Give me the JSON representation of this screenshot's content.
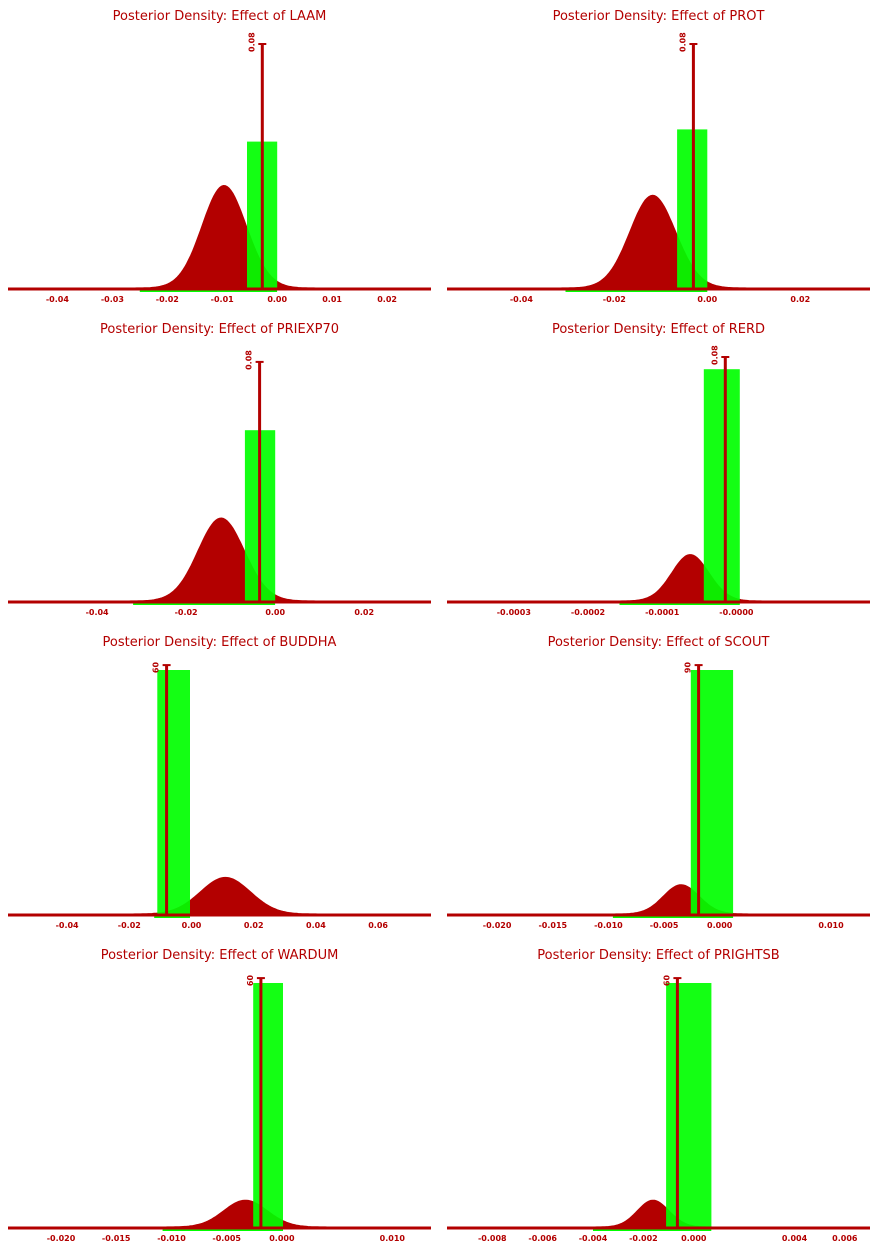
{
  "colors": {
    "density": "#b30000",
    "bar": "#00ff00",
    "axis": "#b30000",
    "text": "#b30000"
  },
  "chart_data": [
    {
      "type": "area",
      "title": "Posterior Density: Effect of LAAM",
      "xlim": [
        -0.049,
        0.028
      ],
      "ticks": [
        "-0.04",
        "-0.03",
        "-0.02",
        "-0.01",
        "0.00",
        "0.01",
        "0.02"
      ],
      "density": {
        "mean": -0.0115,
        "sd": 0.0045,
        "skew": 0.6,
        "peak_frac": 0.42
      },
      "bar": {
        "x0": -0.0055,
        "x1": 0.0,
        "height_frac": 0.6
      },
      "marker": {
        "label": "0.08",
        "x": -0.0027,
        "height_frac": 1.0
      }
    },
    {
      "type": "area",
      "title": "Posterior Density: Effect of PROT",
      "xlim": [
        -0.056,
        0.035
      ],
      "ticks": [
        "-0.04",
        "-0.02",
        "0.00",
        "0.02"
      ],
      "density": {
        "mean": -0.014,
        "sd": 0.0055,
        "skew": 0.6,
        "peak_frac": 0.38
      },
      "bar": {
        "x0": -0.0065,
        "x1": 0.0,
        "height_frac": 0.65
      },
      "marker": {
        "label": "0.08",
        "x": -0.003,
        "height_frac": 1.0
      }
    },
    {
      "type": "area",
      "title": "Posterior Density: Effect of PRIEXP70",
      "xlim": [
        -0.06,
        0.035
      ],
      "ticks": [
        "-0.04",
        "-0.02",
        "0.00",
        "0.02"
      ],
      "density": {
        "mean": -0.0145,
        "sd": 0.0058,
        "skew": 0.6,
        "peak_frac": 0.34
      },
      "bar": {
        "x0": -0.0068,
        "x1": 0.0,
        "height_frac": 0.7
      },
      "marker": {
        "label": "0.08",
        "x": -0.0035,
        "height_frac": 0.98
      }
    },
    {
      "type": "area",
      "title": "Posterior Density: Effect of RERD",
      "xlim": [
        -0.00039,
        0.00018
      ],
      "ticks": [
        "-0.0003",
        "-0.0002",
        "-0.0001",
        "-0.0000"
      ],
      "density": {
        "mean": -7.36e-05,
        "sd": 2.8e-05,
        "skew": 0.6,
        "peak_frac": 0.19
      },
      "bar": {
        "x0": -4.4e-05,
        "x1": 4.5e-06,
        "height_frac": 0.95
      },
      "marker": {
        "label": "0.08",
        "x": -1.5e-05,
        "height_frac": 1.0
      }
    },
    {
      "type": "area",
      "title": "Posterior Density: Effect of BUDDHA",
      "xlim": [
        -0.059,
        0.077
      ],
      "ticks": [
        "-0.04",
        "-0.02",
        "0.00",
        "0.02",
        "0.04",
        "0.06"
      ],
      "density": {
        "mean": 0.0135,
        "sd": 0.0085,
        "skew": -0.4,
        "peak_frac": 0.15
      },
      "bar": {
        "x0": -0.011,
        "x1": -0.0005,
        "height_frac": 1.0
      },
      "marker": {
        "label": "60",
        "x": -0.008,
        "height_frac": 1.02
      }
    },
    {
      "type": "area",
      "title": "Posterior Density: Effect of SCOUT",
      "xlim": [
        -0.0245,
        0.0135
      ],
      "ticks": [
        "-0.020",
        "-0.015",
        "-0.010",
        "-0.005",
        "0.000",
        "0.010"
      ],
      "density": {
        "mean": -0.0042,
        "sd": 0.0018,
        "skew": 0.6,
        "peak_frac": 0.12
      },
      "bar": {
        "x0": -0.0026,
        "x1": 0.0012,
        "height_frac": 1.0
      },
      "marker": {
        "label": "90",
        "x": -0.0019,
        "height_frac": 1.02
      }
    },
    {
      "type": "area",
      "title": "Posterior Density: Effect of WARDUM",
      "xlim": [
        -0.0248,
        0.0135
      ],
      "ticks": [
        "-0.020",
        "-0.015",
        "-0.010",
        "-0.005",
        "0.000",
        "0.010"
      ],
      "density": {
        "mean": -0.0042,
        "sd": 0.0022,
        "skew": 0.6,
        "peak_frac": 0.11
      },
      "bar": {
        "x0": -0.0026,
        "x1": 0.0001,
        "height_frac": 1.0
      },
      "marker": {
        "label": "60",
        "x": -0.0019,
        "height_frac": 1.02
      }
    },
    {
      "type": "area",
      "title": "Posterior Density: Effect of PRIGHTSB",
      "xlim": [
        -0.0098,
        0.007
      ],
      "ticks": [
        "-0.008",
        "-0.006",
        "-0.004",
        "-0.002",
        "0.000",
        "0.004",
        "0.006"
      ],
      "density": {
        "mean": -0.0019,
        "sd": 0.0007,
        "skew": 0.6,
        "peak_frac": 0.11
      },
      "bar": {
        "x0": -0.0011,
        "x1": 0.0007,
        "height_frac": 1.0
      },
      "marker": {
        "label": "60",
        "x": -0.00065,
        "height_frac": 1.02
      }
    }
  ]
}
